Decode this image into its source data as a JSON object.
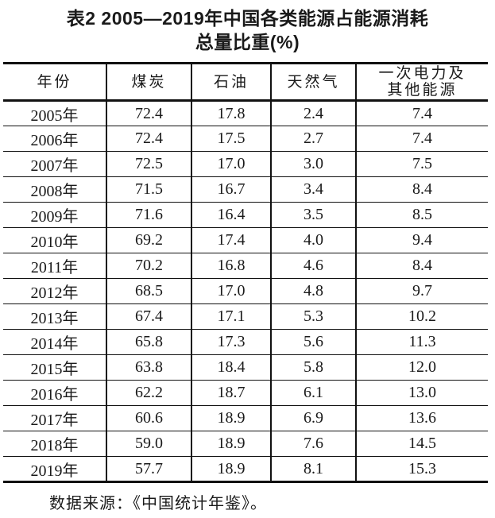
{
  "page": {
    "background_color": "#ffffff",
    "text_color": "#1a1a1a",
    "line_color": "#111111"
  },
  "title": {
    "line1": "表2 2005—2019年中国各类能源占能源消耗",
    "line2": "总量比重(%)"
  },
  "table": {
    "header": {
      "year": "年份",
      "coal": "煤炭",
      "oil": "石油",
      "gas": "天然气",
      "other_line1": "一次电力及",
      "other_line2": "其他能源"
    },
    "rows": [
      {
        "year": "2005年",
        "coal": "72.4",
        "oil": "17.8",
        "gas": "2.4",
        "other": "7.4"
      },
      {
        "year": "2006年",
        "coal": "72.4",
        "oil": "17.5",
        "gas": "2.7",
        "other": "7.4"
      },
      {
        "year": "2007年",
        "coal": "72.5",
        "oil": "17.0",
        "gas": "3.0",
        "other": "7.5"
      },
      {
        "year": "2008年",
        "coal": "71.5",
        "oil": "16.7",
        "gas": "3.4",
        "other": "8.4"
      },
      {
        "year": "2009年",
        "coal": "71.6",
        "oil": "16.4",
        "gas": "3.5",
        "other": "8.5"
      },
      {
        "year": "2010年",
        "coal": "69.2",
        "oil": "17.4",
        "gas": "4.0",
        "other": "9.4"
      },
      {
        "year": "2011年",
        "coal": "70.2",
        "oil": "16.8",
        "gas": "4.6",
        "other": "8.4"
      },
      {
        "year": "2012年",
        "coal": "68.5",
        "oil": "17.0",
        "gas": "4.8",
        "other": "9.7"
      },
      {
        "year": "2013年",
        "coal": "67.4",
        "oil": "17.1",
        "gas": "5.3",
        "other": "10.2"
      },
      {
        "year": "2014年",
        "coal": "65.8",
        "oil": "17.3",
        "gas": "5.6",
        "other": "11.3"
      },
      {
        "year": "2015年",
        "coal": "63.8",
        "oil": "18.4",
        "gas": "5.8",
        "other": "12.0"
      },
      {
        "year": "2016年",
        "coal": "62.2",
        "oil": "18.7",
        "gas": "6.1",
        "other": "13.0"
      },
      {
        "year": "2017年",
        "coal": "60.6",
        "oil": "18.9",
        "gas": "6.9",
        "other": "13.6"
      },
      {
        "year": "2018年",
        "coal": "59.0",
        "oil": "18.9",
        "gas": "7.6",
        "other": "14.5"
      },
      {
        "year": "2019年",
        "coal": "57.7",
        "oil": "18.9",
        "gas": "8.1",
        "other": "15.3"
      }
    ]
  },
  "footer": {
    "source": "数据来源：《中国统计年鉴》。"
  },
  "chart_data": {
    "type": "table",
    "title": "表2 2005—2019年中国各类能源占能源消耗总量比重(%)",
    "columns": [
      "年份",
      "煤炭",
      "石油",
      "天然气",
      "一次电力及其他能源"
    ],
    "rows": [
      [
        "2005年",
        72.4,
        17.8,
        2.4,
        7.4
      ],
      [
        "2006年",
        72.4,
        17.5,
        2.7,
        7.4
      ],
      [
        "2007年",
        72.5,
        17.0,
        3.0,
        7.5
      ],
      [
        "2008年",
        71.5,
        16.7,
        3.4,
        8.4
      ],
      [
        "2009年",
        71.6,
        16.4,
        3.5,
        8.5
      ],
      [
        "2010年",
        69.2,
        17.4,
        4.0,
        9.4
      ],
      [
        "2011年",
        70.2,
        16.8,
        4.6,
        8.4
      ],
      [
        "2012年",
        68.5,
        17.0,
        4.8,
        9.7
      ],
      [
        "2013年",
        67.4,
        17.1,
        5.3,
        10.2
      ],
      [
        "2014年",
        65.8,
        17.3,
        5.6,
        11.3
      ],
      [
        "2015年",
        63.8,
        18.4,
        5.8,
        12.0
      ],
      [
        "2016年",
        62.2,
        18.7,
        6.1,
        13.0
      ],
      [
        "2017年",
        60.6,
        18.9,
        6.9,
        13.6
      ],
      [
        "2018年",
        59.0,
        18.9,
        7.6,
        14.5
      ],
      [
        "2019年",
        57.7,
        18.9,
        8.1,
        15.3
      ]
    ],
    "source_note": "数据来源：《中国统计年鉴》。"
  }
}
